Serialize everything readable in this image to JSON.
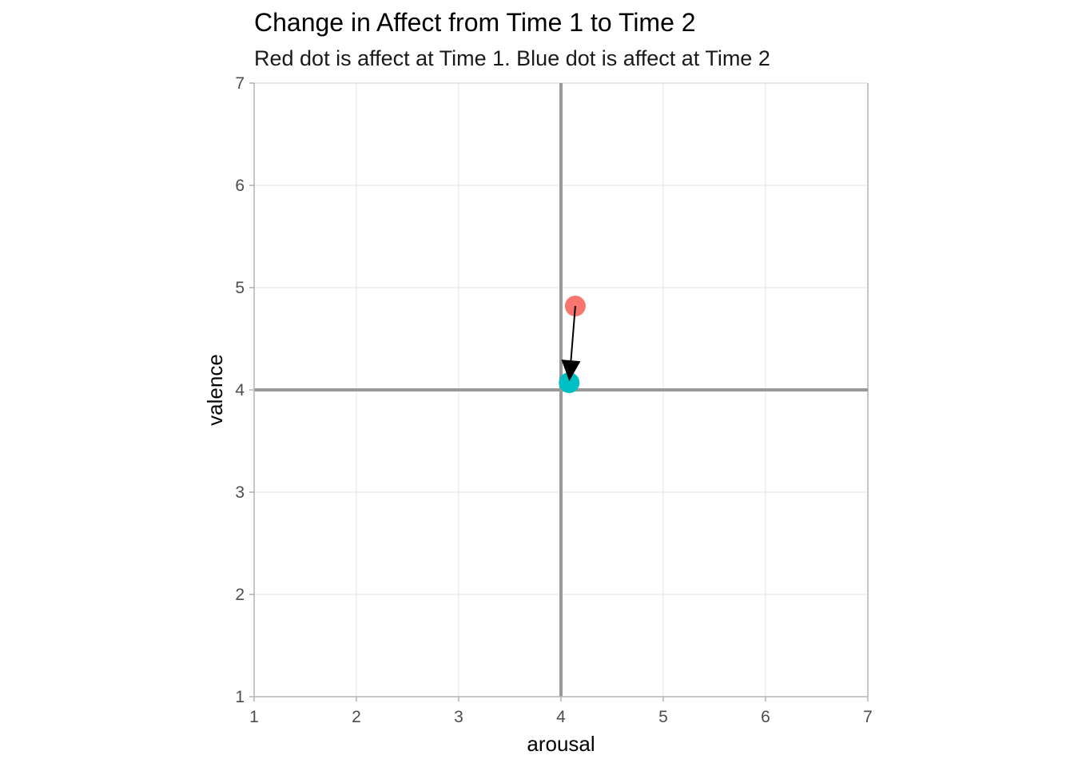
{
  "chart_data": {
    "type": "scatter",
    "title": "Change in Affect from Time 1 to Time 2",
    "subtitle": "Red dot is affect at Time 1. Blue dot is affect at Time 2",
    "xlabel": "arousal",
    "ylabel": "valence",
    "xlim": [
      1,
      7
    ],
    "ylim": [
      1,
      7
    ],
    "x_ticks": [
      1,
      2,
      3,
      4,
      5,
      6,
      7
    ],
    "y_ticks": [
      1,
      2,
      3,
      4,
      5,
      6,
      7
    ],
    "grid": true,
    "reference_lines": {
      "x": 4,
      "y": 4,
      "color": "#999999"
    },
    "points": [
      {
        "label": "Time 1",
        "x": 4.14,
        "y": 4.82,
        "color": "#F8766D"
      },
      {
        "label": "Time 2",
        "x": 4.08,
        "y": 4.07,
        "color": "#00BFC4"
      }
    ],
    "arrow": {
      "from": [
        4.14,
        4.82
      ],
      "to": [
        4.08,
        4.07
      ],
      "color": "#000000"
    }
  }
}
